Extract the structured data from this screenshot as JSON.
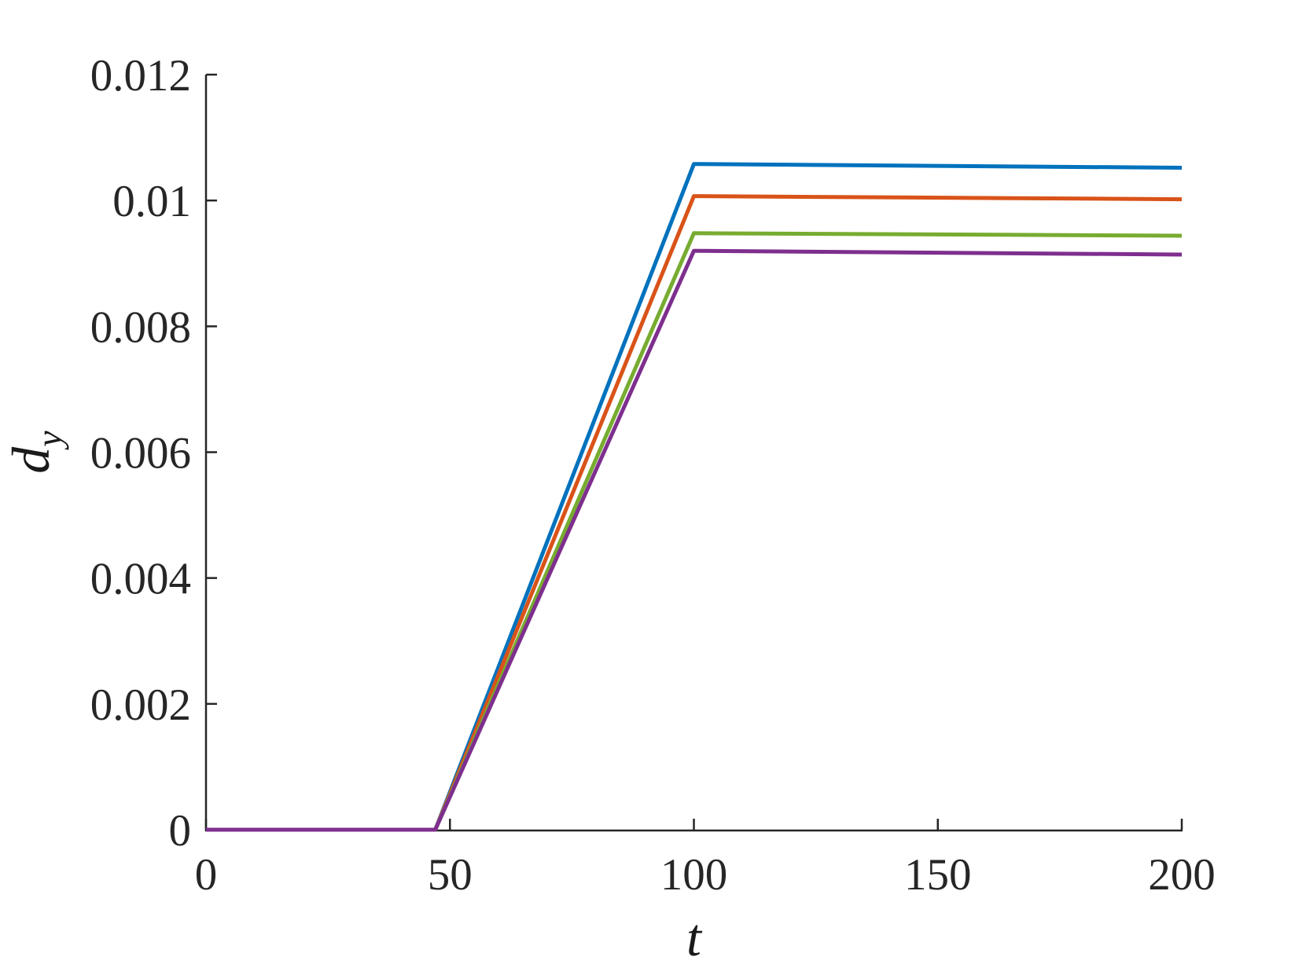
{
  "figure": {
    "background": "#ffffff",
    "axis_color": "#262626",
    "text_color": "#1a1a1a"
  },
  "chart_data": {
    "type": "line",
    "title": "",
    "xlabel": "t",
    "ylabel": "d",
    "ylabel_subscript": "y",
    "xlim": [
      0,
      200
    ],
    "ylim": [
      0,
      0.012
    ],
    "grid": false,
    "legend": "none",
    "box": "off",
    "tick_direction": "in",
    "x_ticks": [
      {
        "value": 0,
        "label": "0"
      },
      {
        "value": 50,
        "label": "50"
      },
      {
        "value": 100,
        "label": "100"
      },
      {
        "value": 150,
        "label": "150"
      },
      {
        "value": 200,
        "label": "200"
      }
    ],
    "y_ticks": [
      {
        "value": 0,
        "label": "0"
      },
      {
        "value": 0.002,
        "label": "0.002"
      },
      {
        "value": 0.004,
        "label": "0.004"
      },
      {
        "value": 0.006,
        "label": "0.006"
      },
      {
        "value": 0.008,
        "label": "0.008"
      },
      {
        "value": 0.01,
        "label": "0.01"
      },
      {
        "value": 0.012,
        "label": "0.012"
      }
    ],
    "series": [
      {
        "name": "line-blue",
        "color": "#0072BD",
        "points": [
          [
            0,
            0
          ],
          [
            47,
            0
          ],
          [
            100,
            0.01058
          ],
          [
            200,
            0.01052
          ]
        ]
      },
      {
        "name": "line-orange",
        "color": "#D95319",
        "points": [
          [
            0,
            0
          ],
          [
            47,
            0
          ],
          [
            100,
            0.01007
          ],
          [
            200,
            0.01002
          ]
        ]
      },
      {
        "name": "line-green",
        "color": "#77AC30",
        "points": [
          [
            0,
            0
          ],
          [
            47,
            0
          ],
          [
            100,
            0.00948
          ],
          [
            200,
            0.00944
          ]
        ]
      },
      {
        "name": "line-purple",
        "color": "#7E2F8E",
        "points": [
          [
            0,
            0
          ],
          [
            47,
            0
          ],
          [
            100,
            0.0092
          ],
          [
            200,
            0.00914
          ]
        ]
      }
    ]
  }
}
